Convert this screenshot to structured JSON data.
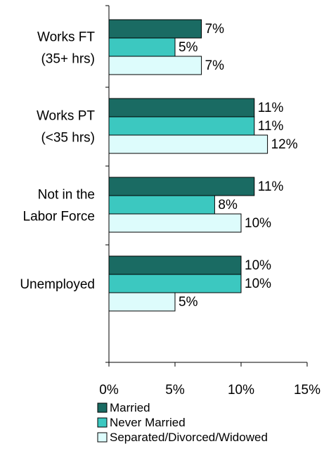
{
  "chart_data": {
    "type": "bar",
    "orientation": "horizontal",
    "title": "",
    "xlabel": "",
    "ylabel": "",
    "categories": [
      [
        "Works FT",
        "(35+ hrs)"
      ],
      [
        "Works PT",
        "(<35 hrs)"
      ],
      [
        "Not in the",
        "Labor Force"
      ],
      [
        "Unemployed"
      ]
    ],
    "series": [
      {
        "name": "Married",
        "color": "#1a6b63",
        "values": [
          7,
          11,
          11,
          10
        ],
        "labels": [
          "7%",
          "11%",
          "11%",
          "10%"
        ]
      },
      {
        "name": "Never Married",
        "color": "#3cc8c0",
        "values": [
          5,
          11,
          8,
          10
        ],
        "labels": [
          "5%",
          "11%",
          "8%",
          "10%"
        ]
      },
      {
        "name": "Separated/Divorced/Widowed",
        "color": "#ddfcfc",
        "values": [
          7,
          12,
          10,
          5
        ],
        "labels": [
          "7%",
          "12%",
          "10%",
          "5%"
        ]
      }
    ],
    "xlim": [
      0,
      15
    ],
    "xticks": [
      0,
      5,
      10,
      15
    ],
    "xtick_labels": [
      "0%",
      "5%",
      "10%",
      "15%"
    ],
    "grid": false,
    "legend_position": "bottom-left"
  }
}
